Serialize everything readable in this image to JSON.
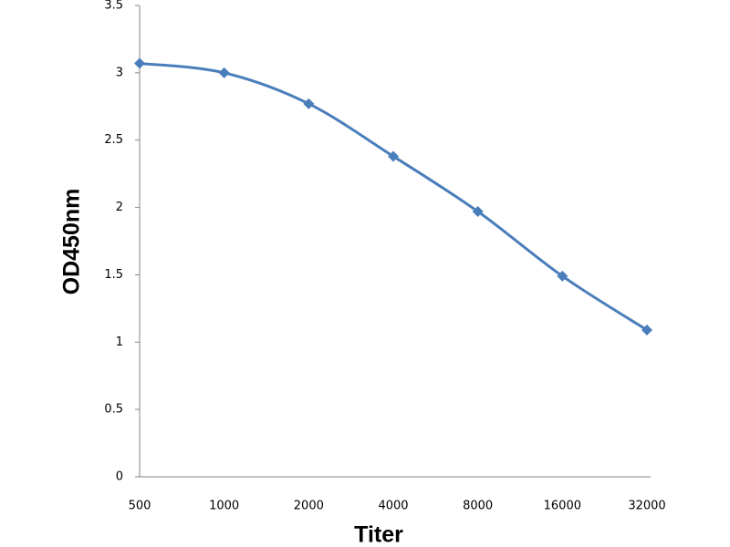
{
  "chart_data": {
    "type": "line",
    "x_label": "Titer",
    "y_label": "OD450nm",
    "categories": [
      "500",
      "1000",
      "2000",
      "4000",
      "8000",
      "16000",
      "32000"
    ],
    "series": [
      {
        "name": null,
        "color": "#4a7ebb",
        "values": [
          3.07,
          3.0,
          2.77,
          2.38,
          1.97,
          1.49,
          1.09
        ]
      }
    ],
    "ylim": [
      0,
      3.5
    ],
    "yticks": [
      0,
      0.5,
      1,
      1.5,
      2,
      2.5,
      3,
      3.5
    ],
    "grid": false,
    "smooth": true,
    "marker": "diamond"
  }
}
